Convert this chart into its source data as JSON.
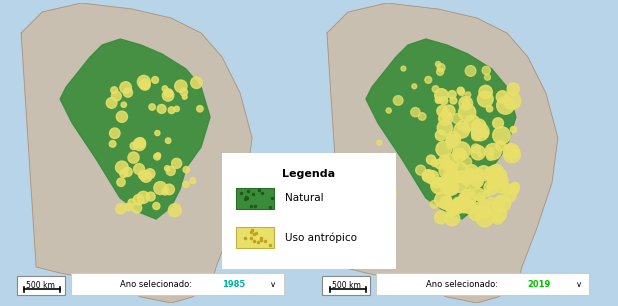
{
  "background_color": "#b8d4e8",
  "map_bg_color": "#d8cfc4",
  "land_color": "#c8bfb0",
  "natural_color": "#3a8c3a",
  "antropico_color": "#e8e068",
  "legend_title": "Legenda",
  "legend_natural": "Natural",
  "legend_antropico": "Uso antrópico",
  "label_left": "Ano selecionado:",
  "year_left": "1985",
  "label_right": "Ano selecionado:",
  "year_right": "2019",
  "scale_text": "500 km",
  "year_color": "#00b0a0",
  "year_2019_color": "#00c000",
  "fig_width": 6.18,
  "fig_height": 3.06,
  "dpi": 100
}
